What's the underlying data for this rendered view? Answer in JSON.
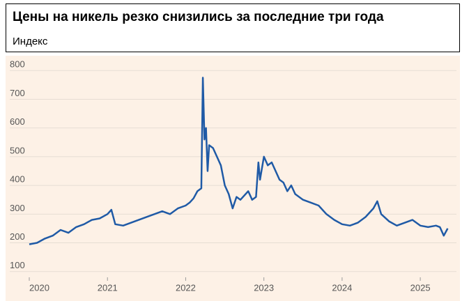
{
  "chart_data": {
    "type": "line",
    "title": "Цены на никель резко снизились за последние три года",
    "subtitle": "Индекс",
    "x": [
      2020.0,
      2020.1,
      2020.2,
      2020.3,
      2020.4,
      2020.5,
      2020.6,
      2020.7,
      2020.8,
      2020.9,
      2021.0,
      2021.05,
      2021.1,
      2021.2,
      2021.3,
      2021.4,
      2021.5,
      2021.6,
      2021.7,
      2021.8,
      2021.9,
      2022.0,
      2022.05,
      2022.1,
      2022.15,
      2022.2,
      2022.22,
      2022.24,
      2022.26,
      2022.28,
      2022.3,
      2022.35,
      2022.4,
      2022.45,
      2022.5,
      2022.55,
      2022.6,
      2022.65,
      2022.7,
      2022.8,
      2022.85,
      2022.9,
      2022.93,
      2022.95,
      2023.0,
      2023.05,
      2023.1,
      2023.15,
      2023.2,
      2023.25,
      2023.3,
      2023.35,
      2023.4,
      2023.5,
      2023.6,
      2023.7,
      2023.8,
      2023.9,
      2024.0,
      2024.1,
      2024.2,
      2024.3,
      2024.4,
      2024.45,
      2024.5,
      2024.6,
      2024.7,
      2024.8,
      2024.9,
      2025.0,
      2025.1,
      2025.2,
      2025.25,
      2025.3,
      2025.35
    ],
    "series": [
      {
        "color": "#1f5aa6",
        "values": [
          195,
          200,
          215,
          225,
          245,
          235,
          255,
          265,
          280,
          285,
          300,
          315,
          265,
          260,
          270,
          280,
          290,
          300,
          310,
          300,
          320,
          330,
          340,
          355,
          380,
          390,
          775,
          560,
          600,
          450,
          540,
          530,
          500,
          470,
          400,
          370,
          320,
          360,
          350,
          380,
          350,
          360,
          480,
          420,
          500,
          470,
          480,
          450,
          420,
          410,
          380,
          400,
          370,
          350,
          340,
          330,
          300,
          280,
          265,
          260,
          270,
          290,
          320,
          345,
          300,
          275,
          260,
          270,
          280,
          260,
          255,
          260,
          255,
          225,
          250
        ]
      }
    ],
    "xlim": [
      2020.0,
      2025.4
    ],
    "xticks": [
      2020,
      2021,
      2022,
      2023,
      2024,
      2025
    ],
    "ylim": [
      80,
      820
    ],
    "yticks": [
      100,
      200,
      300,
      400,
      500,
      600,
      700,
      800
    ],
    "grid": true
  }
}
